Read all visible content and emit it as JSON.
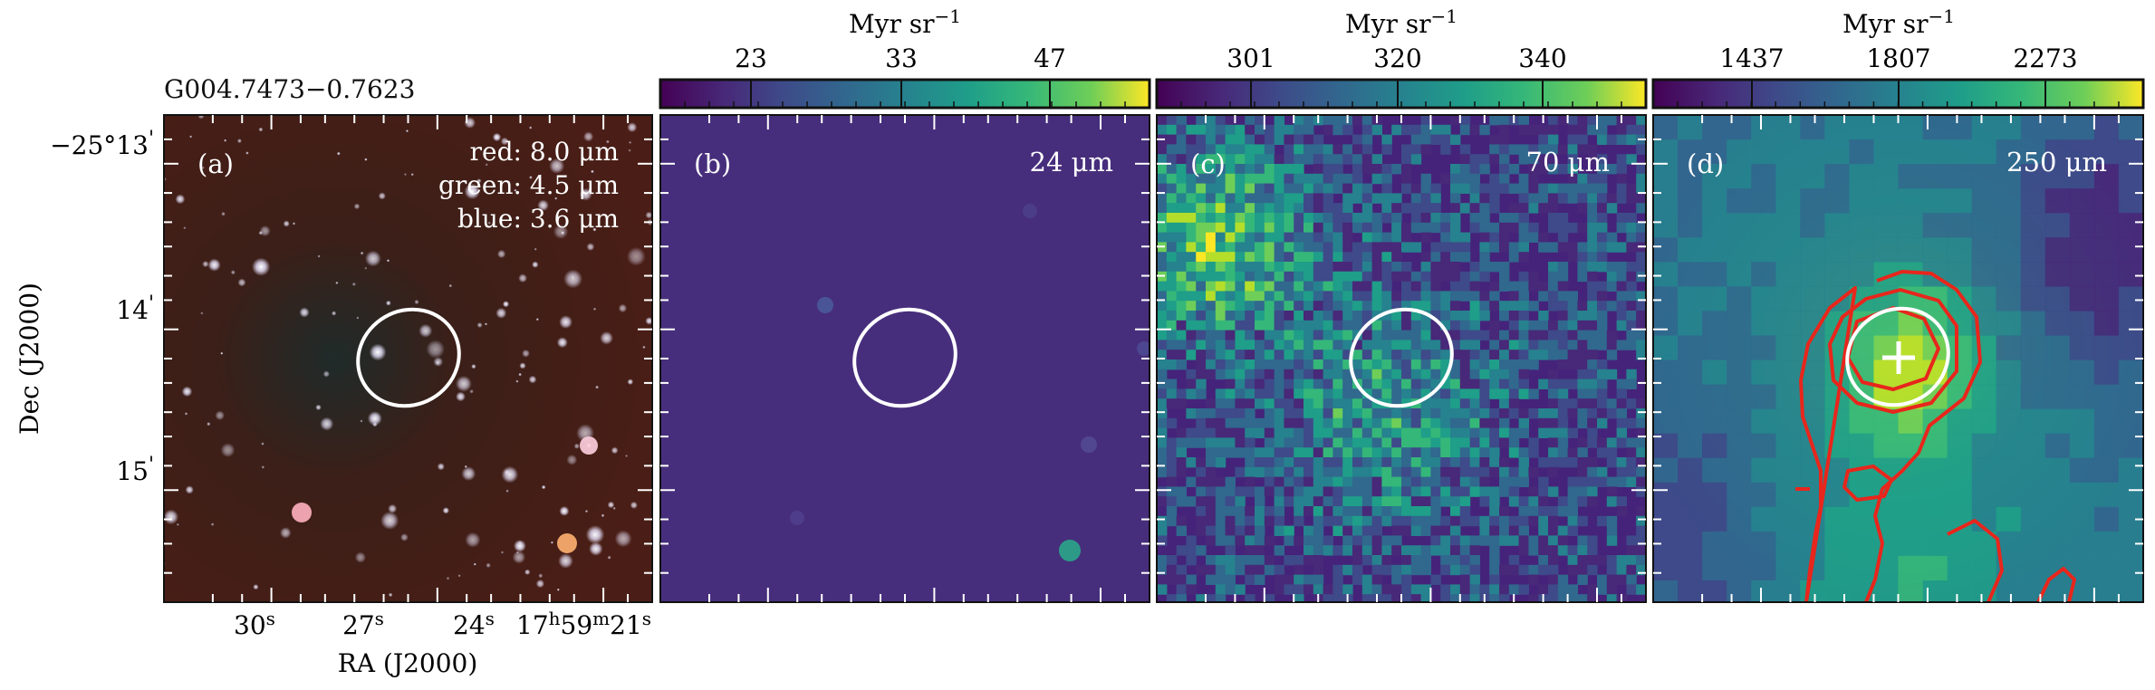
{
  "chart_data": [
    {
      "type": "image",
      "panel_label": "(a)",
      "title": "G004.7473−0.7623",
      "legend_lines": [
        "red: 8.0 μm",
        "green: 4.5 μm",
        "blue: 3.6 μm"
      ],
      "xlabel": "RA (J2000)",
      "ylabel": "Dec (J2000)",
      "x_ticks": [
        {
          "main": "30",
          "sup": "s",
          "rest": ""
        },
        {
          "main": "27",
          "sup": "s",
          "rest": ""
        },
        {
          "main": "24",
          "sup": "s",
          "rest": ""
        },
        {
          "main": "17",
          "sup": "h",
          "rest": "59",
          "sup2": "m",
          "rest2": "21",
          "sup3": "s"
        }
      ],
      "y_ticks": [
        {
          "main": "−25°13",
          "sup": "'"
        },
        {
          "main": "14",
          "sup": "'"
        },
        {
          "main": "15",
          "sup": "'"
        }
      ],
      "ellipse": true,
      "background": "#3a1a14"
    },
    {
      "type": "image",
      "panel_label": "(b)",
      "band_label": "24 μm",
      "colorbar": {
        "unit": "Myr sr",
        "unit_exp": "−1",
        "ticks": [
          "23",
          "33",
          "47"
        ],
        "colormap": "viridis"
      },
      "ellipse": true,
      "background": "#472e7c"
    },
    {
      "type": "heatmap",
      "panel_label": "(c)",
      "band_label": "70 μm",
      "colorbar": {
        "unit": "Myr sr",
        "unit_exp": "−1",
        "ticks": [
          "301",
          "320",
          "340"
        ],
        "colormap": "viridis"
      },
      "ellipse": true,
      "background": "#45237a"
    },
    {
      "type": "heatmap",
      "panel_label": "(d)",
      "band_label": "250 μm",
      "colorbar": {
        "unit": "Myr sr",
        "unit_exp": "−1",
        "ticks": [
          "1437",
          "1807",
          "2273"
        ],
        "colormap": "viridis"
      },
      "ellipse": true,
      "marker": "plus",
      "contours": "red",
      "background": "#2a8a8a"
    }
  ]
}
